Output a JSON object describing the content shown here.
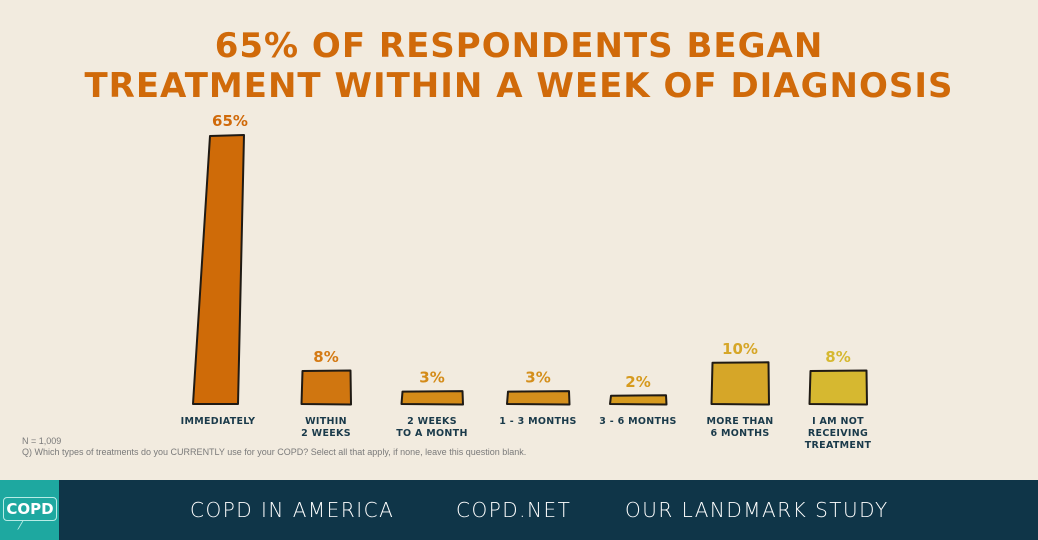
{
  "chart_data": {
    "type": "bar",
    "title_lines": [
      "65% OF RESPONDENTS BEGAN",
      "TREATMENT WITHIN A WEEK OF DIAGNOSIS"
    ],
    "categories": [
      [
        "IMMEDIATELY"
      ],
      [
        "WITHIN",
        "2 WEEKS"
      ],
      [
        "2 WEEKS",
        "TO A MONTH"
      ],
      [
        "1 - 3 MONTHS"
      ],
      [
        "3 - 6 MONTHS"
      ],
      [
        "MORE THAN",
        "6 MONTHS"
      ],
      [
        "I AM NOT",
        "RECEIVING",
        "TREATMENT"
      ]
    ],
    "values": [
      65,
      8,
      3,
      3,
      2,
      10,
      8
    ],
    "value_labels": [
      "65%",
      "8%",
      "3%",
      "3%",
      "2%",
      "10%",
      "8%"
    ],
    "colors": [
      "#cf6b08",
      "#d07610",
      "#d48b18",
      "#d48f1c",
      "#d69a1e",
      "#d6a628",
      "#d6b830"
    ],
    "label_colors": [
      "#d06a0a",
      "#d47a14",
      "#d48b18",
      "#d48f1c",
      "#d69a1e",
      "#d6a628",
      "#d6b830"
    ],
    "unit": "%",
    "xlabel": "",
    "ylabel": "",
    "ylim": [
      0,
      65
    ],
    "grid": false,
    "legend": "none"
  },
  "notes": {
    "sample": "N = 1,009",
    "question": "Q)  Which types of treatments do you CURRENTLY use for your COPD? Select all that apply, if none, leave this question blank."
  },
  "footer": {
    "logo_text": "COPD",
    "links": [
      "COPD IN AMERICA",
      "COPD.NET",
      "OUR LANDMARK STUDY"
    ],
    "background": "#0f3548",
    "logo_color": "#1ea8a0"
  }
}
